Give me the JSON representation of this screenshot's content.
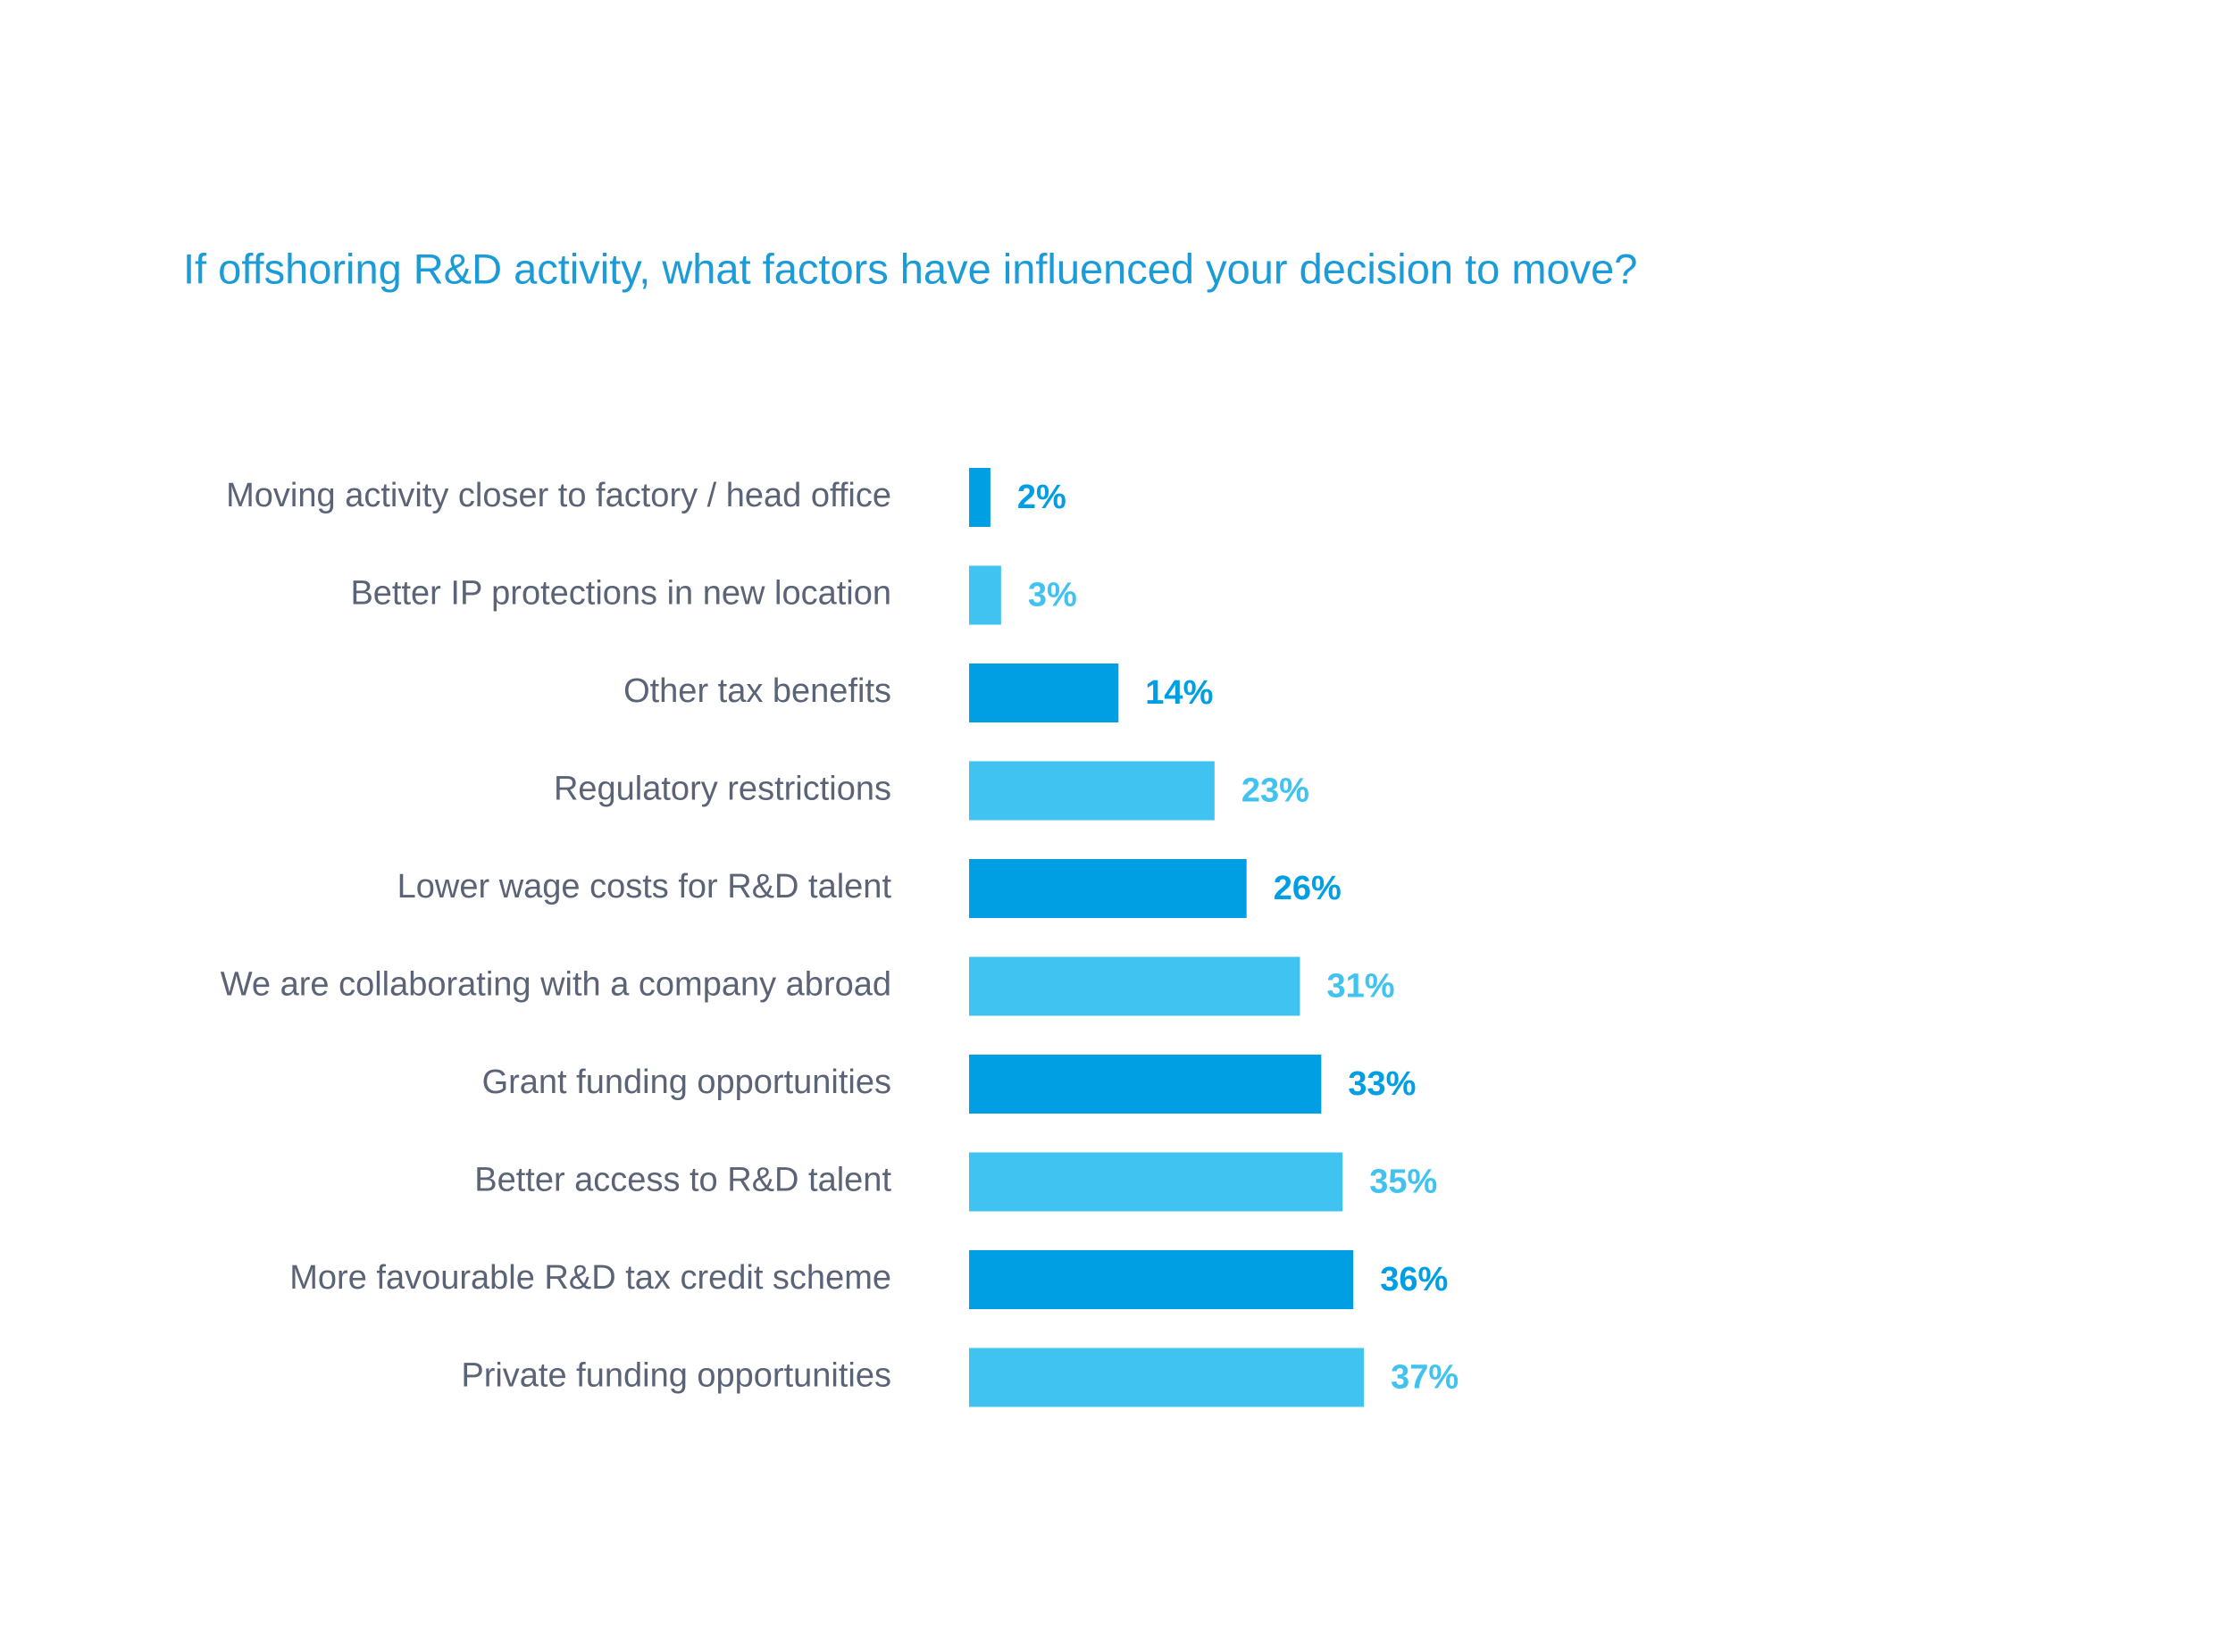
{
  "chart_data": {
    "type": "barh",
    "title": "If offshoring R&D activity, what factors have influenced your decision to move?",
    "categories": [
      "Moving activity closer to factory / head office",
      "Better IP protections in new location",
      "Other tax benefits",
      "Regulatory restrictions",
      "Lower wage costs for R&D talent",
      "We are collaborating with a company abroad",
      "Grant funding opportunities",
      "Better access to R&D talent",
      "More favourable R&D tax credit scheme",
      "Private funding opportunities"
    ],
    "values": [
      2,
      3,
      14,
      23,
      26,
      31,
      33,
      35,
      36,
      37
    ],
    "value_labels": [
      "2%",
      "3%",
      "14%",
      "23%",
      "26%",
      "31%",
      "33%",
      "35%",
      "36%",
      "37%"
    ],
    "colors": [
      "#009fe3",
      "#40c3f0",
      "#009fe3",
      "#40c3f0",
      "#009fe3",
      "#40c3f0",
      "#009fe3",
      "#40c3f0",
      "#009fe3",
      "#40c3f0"
    ]
  }
}
